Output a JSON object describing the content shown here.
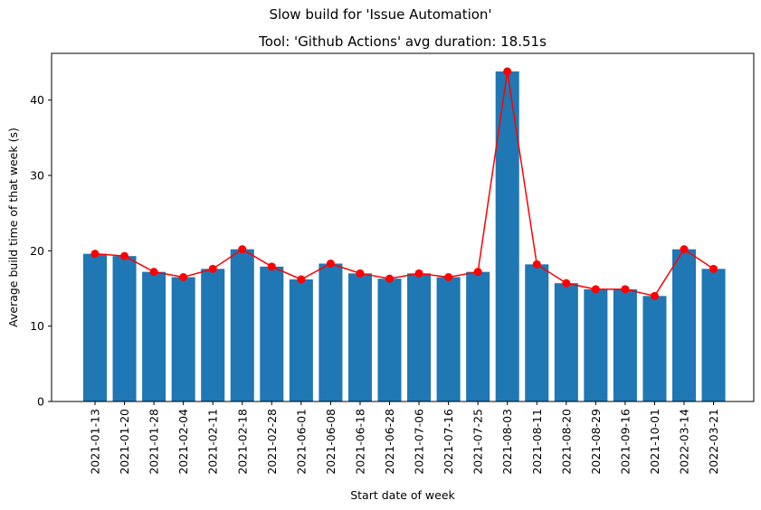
{
  "figure": {
    "suptitle": "Slow build for 'Issue Automation'"
  },
  "chart_data": {
    "type": "bar",
    "title": "Tool: 'Github Actions' avg duration: 18.51s",
    "xlabel": "Start date of week",
    "ylabel": "Average build time of that week (s)",
    "ylim": [
      0,
      46.2
    ],
    "yticks": [
      0,
      10,
      20,
      30,
      40
    ],
    "grid": false,
    "categories": [
      "2021-01-13",
      "2021-01-20",
      "2021-01-28",
      "2021-02-04",
      "2021-02-11",
      "2021-02-18",
      "2021-02-28",
      "2021-06-01",
      "2021-06-08",
      "2021-06-18",
      "2021-06-28",
      "2021-07-06",
      "2021-07-16",
      "2021-07-25",
      "2021-08-03",
      "2021-08-11",
      "2021-08-20",
      "2021-08-29",
      "2021-09-16",
      "2021-10-01",
      "2022-03-14",
      "2022-03-21"
    ],
    "values": [
      19.6,
      19.3,
      17.2,
      16.5,
      17.6,
      20.2,
      17.9,
      16.2,
      18.3,
      17.0,
      16.3,
      17.0,
      16.5,
      17.2,
      43.8,
      18.2,
      15.7,
      14.9,
      14.9,
      14.0,
      20.2,
      17.6
    ],
    "bar_color": "#1f77b4",
    "line_color": "#ff0000",
    "line_overlay": true
  }
}
